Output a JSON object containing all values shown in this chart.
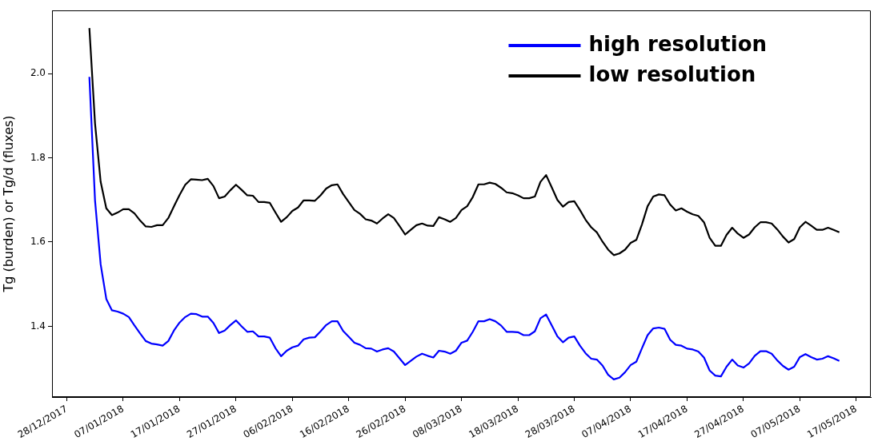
{
  "chart_data": {
    "type": "line",
    "ylabel": "Tg (burden) or Tg/d (fluxes)",
    "x": [
      "2018-01-01",
      "2018-01-02",
      "2018-01-03",
      "2018-01-04",
      "2018-01-05",
      "2018-01-06",
      "2018-01-07",
      "2018-01-08",
      "2018-01-09",
      "2018-01-10",
      "2018-01-11",
      "2018-01-12",
      "2018-01-13",
      "2018-01-14",
      "2018-01-15",
      "2018-01-16",
      "2018-01-17",
      "2018-01-18",
      "2018-01-19",
      "2018-01-20",
      "2018-01-21",
      "2018-01-22",
      "2018-01-23",
      "2018-01-24",
      "2018-01-25",
      "2018-01-26",
      "2018-01-27",
      "2018-01-28",
      "2018-01-29",
      "2018-01-30",
      "2018-01-31",
      "2018-02-01",
      "2018-02-02",
      "2018-02-03",
      "2018-02-04",
      "2018-02-05",
      "2018-02-06",
      "2018-02-07",
      "2018-02-08",
      "2018-02-09",
      "2018-02-10",
      "2018-02-11",
      "2018-02-12",
      "2018-02-13",
      "2018-02-14",
      "2018-02-15",
      "2018-02-16",
      "2018-02-17",
      "2018-02-18",
      "2018-02-19",
      "2018-02-20",
      "2018-02-21",
      "2018-02-22",
      "2018-02-23",
      "2018-02-24",
      "2018-02-25",
      "2018-02-26",
      "2018-02-27",
      "2018-02-28",
      "2018-03-01",
      "2018-03-02",
      "2018-03-03",
      "2018-03-04",
      "2018-03-05",
      "2018-03-06",
      "2018-03-07",
      "2018-03-08",
      "2018-03-09",
      "2018-03-10",
      "2018-03-11",
      "2018-03-12",
      "2018-03-13",
      "2018-03-14",
      "2018-03-15",
      "2018-03-16",
      "2018-03-17",
      "2018-03-18",
      "2018-03-19",
      "2018-03-20",
      "2018-03-21",
      "2018-03-22",
      "2018-03-23",
      "2018-03-24",
      "2018-03-25",
      "2018-03-26",
      "2018-03-27",
      "2018-03-28",
      "2018-03-29",
      "2018-03-30",
      "2018-03-31",
      "2018-04-01",
      "2018-04-02",
      "2018-04-03",
      "2018-04-04",
      "2018-04-05",
      "2018-04-06",
      "2018-04-07",
      "2018-04-08",
      "2018-04-09",
      "2018-04-10",
      "2018-04-11",
      "2018-04-12",
      "2018-04-13",
      "2018-04-14",
      "2018-04-15",
      "2018-04-16",
      "2018-04-17",
      "2018-04-18",
      "2018-04-19",
      "2018-04-20",
      "2018-04-21",
      "2018-04-22",
      "2018-04-23",
      "2018-04-24",
      "2018-04-25",
      "2018-04-26",
      "2018-04-27",
      "2018-04-28",
      "2018-04-29",
      "2018-04-30",
      "2018-05-01",
      "2018-05-02",
      "2018-05-03",
      "2018-05-04",
      "2018-05-05",
      "2018-05-06",
      "2018-05-07",
      "2018-05-08",
      "2018-05-09",
      "2018-05-10",
      "2018-05-11",
      "2018-05-12",
      "2018-05-13",
      "2018-05-14"
    ],
    "series": [
      {
        "name": "high resolution",
        "color": "#0000ff",
        "values": [
          1.992,
          1.699,
          1.547,
          1.465,
          1.438,
          1.435,
          1.43,
          1.422,
          1.402,
          1.383,
          1.365,
          1.359,
          1.357,
          1.354,
          1.365,
          1.39,
          1.409,
          1.422,
          1.43,
          1.429,
          1.423,
          1.423,
          1.408,
          1.384,
          1.39,
          1.403,
          1.414,
          1.4,
          1.387,
          1.388,
          1.376,
          1.376,
          1.373,
          1.348,
          1.329,
          1.342,
          1.35,
          1.354,
          1.369,
          1.373,
          1.374,
          1.388,
          1.403,
          1.412,
          1.412,
          1.389,
          1.375,
          1.361,
          1.356,
          1.348,
          1.347,
          1.34,
          1.345,
          1.348,
          1.34,
          1.324,
          1.308,
          1.318,
          1.328,
          1.335,
          1.33,
          1.326,
          1.342,
          1.34,
          1.335,
          1.342,
          1.361,
          1.366,
          1.387,
          1.412,
          1.412,
          1.417,
          1.412,
          1.402,
          1.387,
          1.387,
          1.386,
          1.379,
          1.379,
          1.388,
          1.419,
          1.428,
          1.402,
          1.376,
          1.362,
          1.373,
          1.376,
          1.354,
          1.336,
          1.323,
          1.321,
          1.307,
          1.285,
          1.274,
          1.278,
          1.291,
          1.308,
          1.316,
          1.348,
          1.379,
          1.395,
          1.397,
          1.394,
          1.368,
          1.356,
          1.354,
          1.347,
          1.345,
          1.34,
          1.326,
          1.295,
          1.283,
          1.281,
          1.304,
          1.321,
          1.307,
          1.302,
          1.312,
          1.33,
          1.341,
          1.341,
          1.335,
          1.319,
          1.306,
          1.297,
          1.304,
          1.327,
          1.334,
          1.327,
          1.321,
          1.323,
          1.329,
          1.324,
          1.318
        ]
      },
      {
        "name": "low resolution",
        "color": "#000000",
        "values": [
          2.108,
          1.882,
          1.743,
          1.68,
          1.664,
          1.67,
          1.678,
          1.678,
          1.668,
          1.651,
          1.637,
          1.636,
          1.64,
          1.64,
          1.657,
          1.685,
          1.712,
          1.736,
          1.749,
          1.748,
          1.747,
          1.75,
          1.733,
          1.704,
          1.708,
          1.723,
          1.736,
          1.724,
          1.711,
          1.71,
          1.695,
          1.695,
          1.693,
          1.67,
          1.648,
          1.659,
          1.674,
          1.682,
          1.699,
          1.699,
          1.698,
          1.711,
          1.727,
          1.735,
          1.737,
          1.714,
          1.695,
          1.676,
          1.667,
          1.654,
          1.651,
          1.644,
          1.656,
          1.666,
          1.657,
          1.638,
          1.618,
          1.629,
          1.64,
          1.644,
          1.639,
          1.638,
          1.659,
          1.654,
          1.648,
          1.657,
          1.676,
          1.685,
          1.707,
          1.737,
          1.737,
          1.741,
          1.738,
          1.729,
          1.718,
          1.716,
          1.711,
          1.704,
          1.704,
          1.708,
          1.743,
          1.759,
          1.73,
          1.7,
          1.684,
          1.695,
          1.697,
          1.676,
          1.653,
          1.635,
          1.623,
          1.601,
          1.582,
          1.569,
          1.573,
          1.582,
          1.598,
          1.605,
          1.642,
          1.685,
          1.708,
          1.713,
          1.711,
          1.689,
          1.675,
          1.68,
          1.672,
          1.666,
          1.662,
          1.647,
          1.61,
          1.591,
          1.591,
          1.617,
          1.634,
          1.62,
          1.61,
          1.618,
          1.635,
          1.647,
          1.647,
          1.644,
          1.63,
          1.613,
          1.599,
          1.607,
          1.635,
          1.648,
          1.639,
          1.629,
          1.629,
          1.634,
          1.629,
          1.623
        ]
      }
    ],
    "xlim": [
      "2017-12-25T09:00",
      "2018-05-19T14:00"
    ],
    "xticks": [
      {
        "value": "2017-12-28",
        "label": "28/12/2017"
      },
      {
        "value": "2018-01-07",
        "label": "07/01/2018"
      },
      {
        "value": "2018-01-17",
        "label": "17/01/2018"
      },
      {
        "value": "2018-01-27",
        "label": "27/01/2018"
      },
      {
        "value": "2018-02-06",
        "label": "06/02/2018"
      },
      {
        "value": "2018-02-16",
        "label": "16/02/2018"
      },
      {
        "value": "2018-02-26",
        "label": "26/02/2018"
      },
      {
        "value": "2018-03-08",
        "label": "08/03/2018"
      },
      {
        "value": "2018-03-18",
        "label": "18/03/2018"
      },
      {
        "value": "2018-03-28",
        "label": "28/03/2018"
      },
      {
        "value": "2018-04-07",
        "label": "07/04/2018"
      },
      {
        "value": "2018-04-17",
        "label": "17/04/2018"
      },
      {
        "value": "2018-04-27",
        "label": "27/04/2018"
      },
      {
        "value": "2018-05-07",
        "label": "07/05/2018"
      },
      {
        "value": "2018-05-17",
        "label": "17/05/2018"
      }
    ],
    "ylim": [
      1.232,
      2.15
    ],
    "yticks": [
      1.4,
      1.6,
      1.8,
      {
        "value": 2,
        "label": "2.0"
      }
    ],
    "legend": "top right",
    "grid": false,
    "marker": "none",
    "line_style": "solid"
  }
}
